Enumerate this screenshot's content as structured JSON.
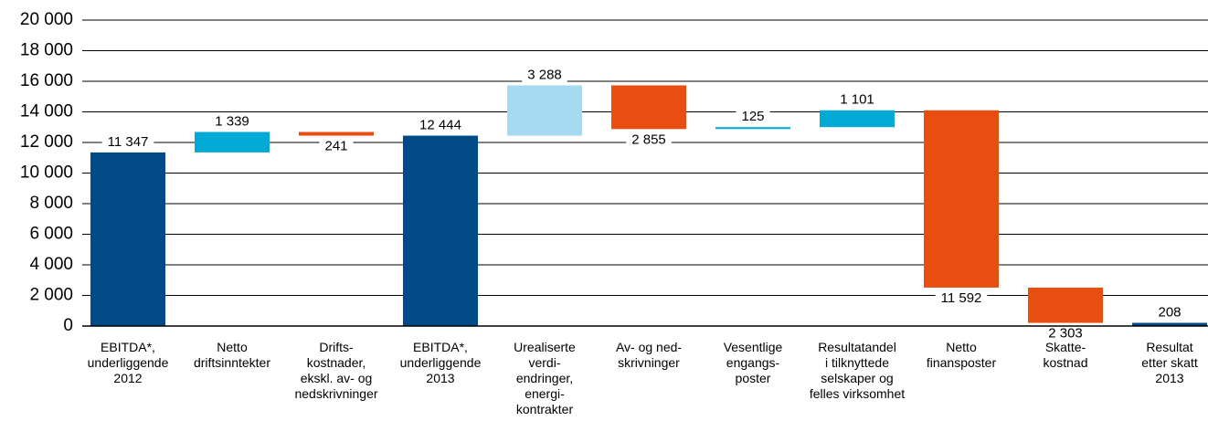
{
  "chart_data": {
    "type": "waterfall",
    "categories": [
      "EBITDA*,\nunderliggende\n2012",
      "Netto\ndriftsinntekter",
      "Drifts-\nkostnader,\nekskl. av- og\nnedskrivninger",
      "EBITDA*,\nunderliggende\n2013",
      "Urealiserte\nverdi-\nendringer,\nenergi-\nkontrakter",
      "Av- og ned-\nskrivninger",
      "Vesentlige\nengangs-\nposter",
      "Resultatandel\ni tilknyttede\nselskaper og\nfelles virksomhet",
      "Netto\nfinansposter",
      "Skatte-\nkostnad",
      "Resultat\netter skatt\n2013"
    ],
    "values": [
      11347,
      1339,
      -241,
      12444,
      3288,
      -2855,
      125,
      1101,
      -11592,
      -2303,
      208
    ],
    "value_labels": [
      "11 347",
      "1 339",
      "241",
      "12 444",
      "3 288",
      "2 855",
      "125",
      "1 101",
      "11 592",
      "2 303",
      "208"
    ],
    "measures": [
      "absolute",
      "relative",
      "relative",
      "absolute",
      "relative",
      "relative",
      "relative",
      "relative",
      "relative",
      "relative",
      "absolute"
    ],
    "colors": [
      "#004b87",
      "#00aad4",
      "#e84e10",
      "#004b87",
      "#a6daf0",
      "#e84e10",
      "#00aad4",
      "#00aad4",
      "#e84e10",
      "#e84e10",
      "#004b87"
    ],
    "ylim": [
      0,
      20000
    ],
    "yticks": [
      0,
      {
        "value": 2000,
        "label": "2 000"
      },
      {
        "value": 4000,
        "label": "4 000"
      },
      {
        "value": 6000,
        "label": "6 000"
      },
      {
        "value": 8000,
        "label": "8 000"
      },
      {
        "value": 10000,
        "label": "10 000"
      },
      {
        "value": 12000,
        "label": "12 000"
      },
      {
        "value": 14000,
        "label": "14 000"
      },
      {
        "value": 16000,
        "label": "16 000"
      },
      {
        "value": 18000,
        "label": "18 000"
      },
      {
        "value": 20000,
        "label": "20 000"
      }
    ],
    "grid": true
  }
}
